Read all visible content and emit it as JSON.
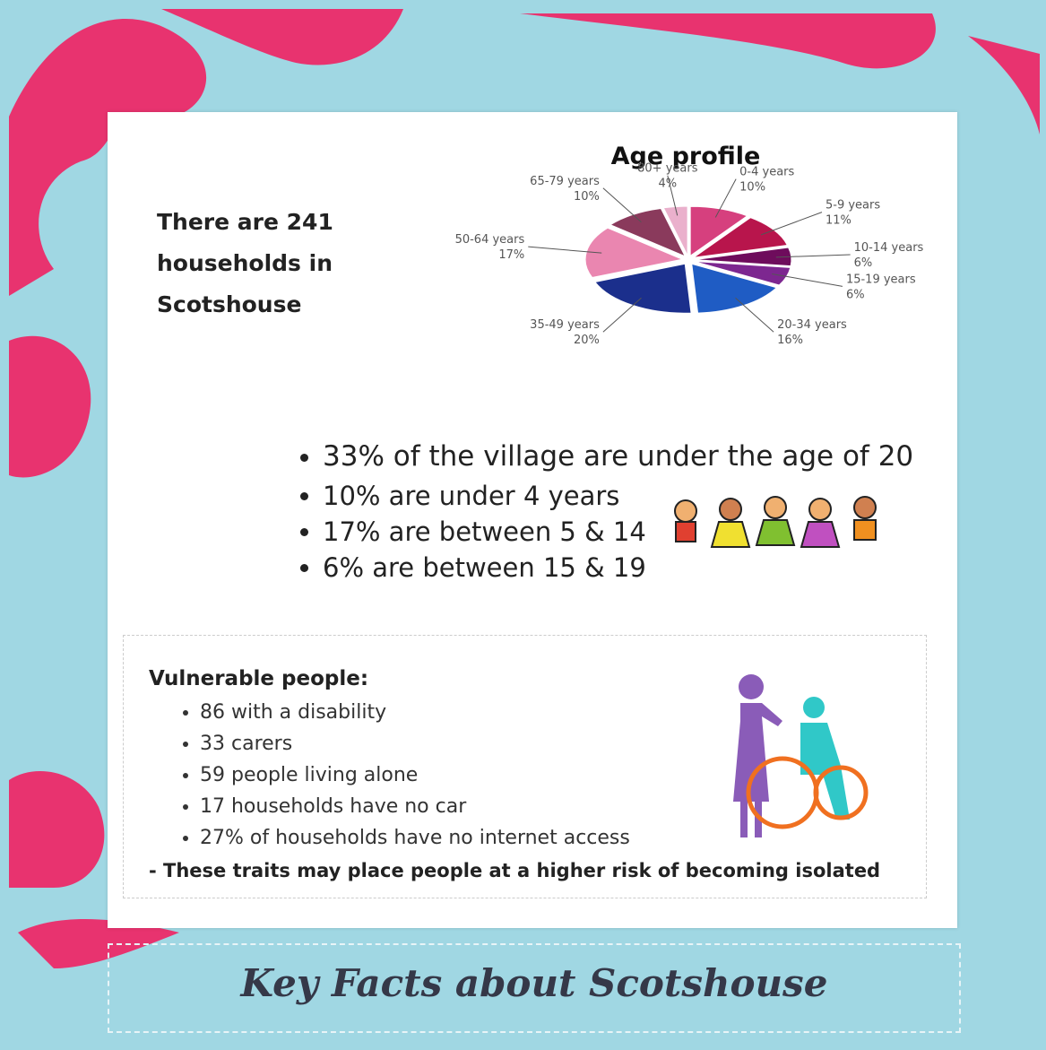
{
  "households": "There are 241 households in Scotshouse",
  "chart_data": {
    "type": "pie",
    "title": "Age profile",
    "categories": [
      "0-4 years",
      "5-9 years",
      "10-14 years",
      "15-19 years",
      "20-34 years",
      "35-49 years",
      "50-64 years",
      "65-79 years",
      "80+ years"
    ],
    "values": [
      10,
      11,
      6,
      6,
      16,
      20,
      17,
      10,
      4
    ],
    "value_labels": [
      "10%",
      "11%",
      "6%",
      "6%",
      "16%",
      "20%",
      "17%",
      "10%",
      "4%"
    ],
    "colors": [
      "#d6407e",
      "#b8154c",
      "#6e0c5c",
      "#7d2790",
      "#1f5cc4",
      "#1b2f8c",
      "#ea86b0",
      "#8a3a5c",
      "#eab0cc"
    ]
  },
  "age_facts": [
    "33% of the village are under the age of 20",
    "10% are under 4 years",
    "17% are between 5 & 14",
    "6% are between 15 & 19"
  ],
  "vulnerable": {
    "heading": "Vulnerable people:",
    "items": [
      "86 with a disability",
      "33 carers",
      "59 people living alone",
      "17 households have no car",
      "27% of households have no internet access"
    ],
    "note": "- These traits may place people at a higher risk of becoming isolated"
  },
  "footer_title": "Key Facts about Scotshouse"
}
